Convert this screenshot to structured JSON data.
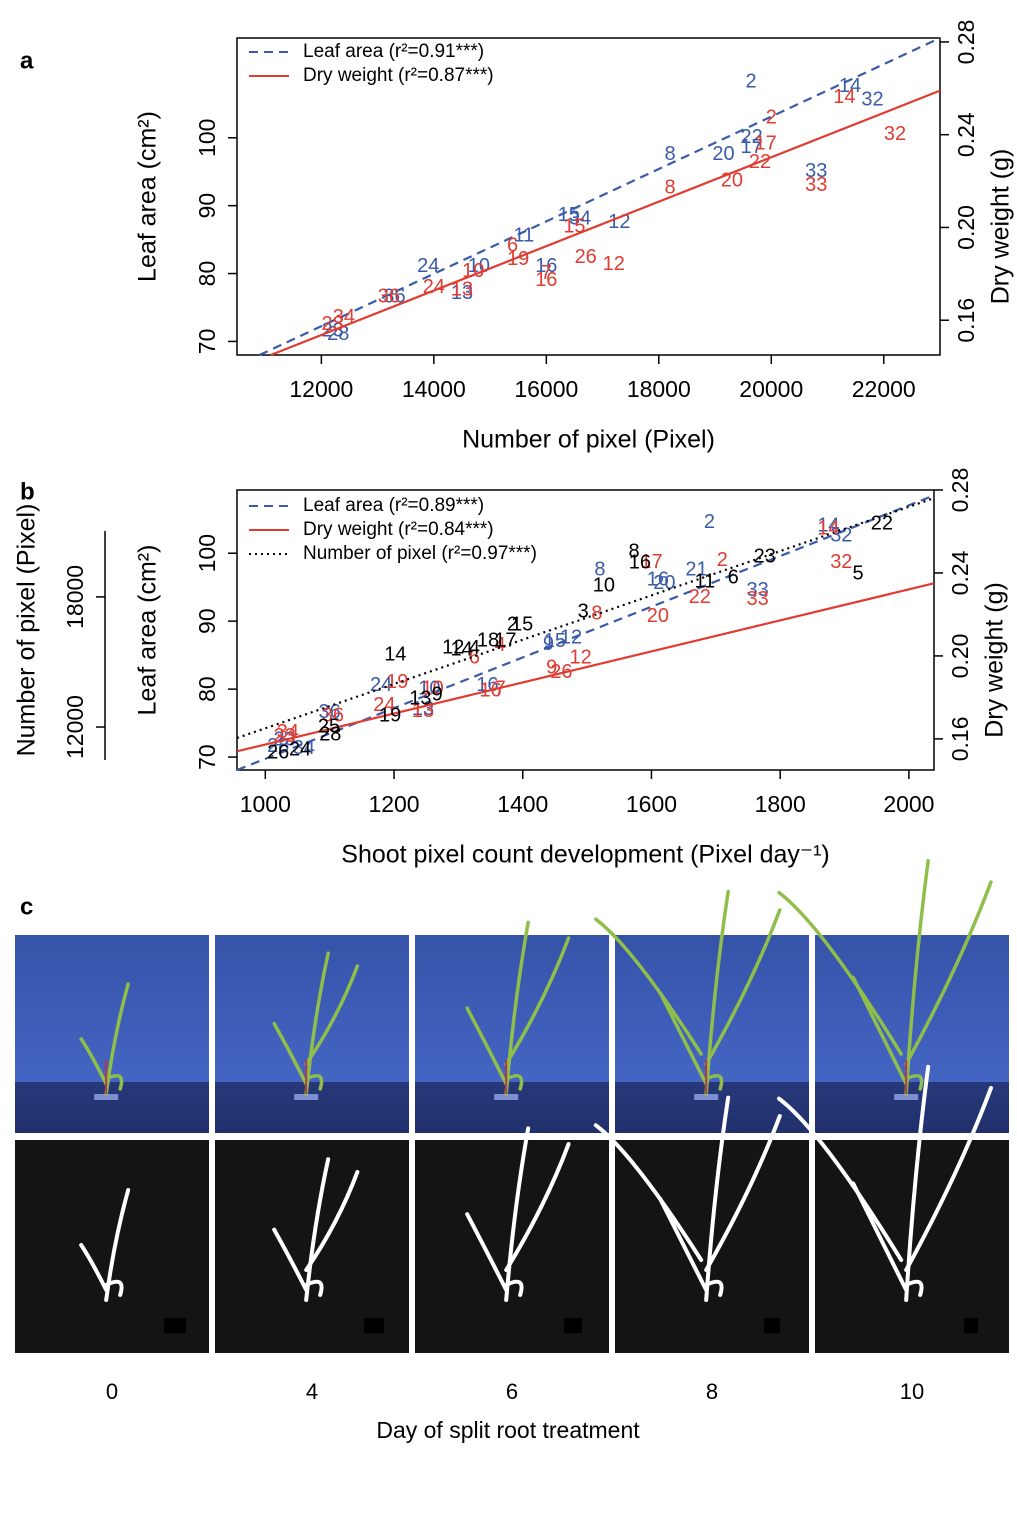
{
  "chart_data": [
    {
      "type": "scatter",
      "panel": "a",
      "xlabel": "Number of pixel (Pixel)",
      "ylabel": "Leaf area (cm²)",
      "y2label": "Dry weight (g)",
      "xlim": [
        10500,
        23000
      ],
      "xticks": [
        12000,
        14000,
        16000,
        18000,
        20000,
        22000
      ],
      "ylim": [
        68,
        114.7
      ],
      "yticks": [
        70,
        80,
        90,
        100
      ],
      "y2lim": [
        0.145,
        0.2817
      ],
      "y2ticks": [
        0.16,
        {
          "value": 0.2,
          "label": "0.20"
        },
        0.24,
        0.28
      ],
      "legend": "upper left",
      "series": [
        {
          "name": "Leaf area (r²=0.91***)",
          "color": "#3a5ba9",
          "linestyle": "dashed",
          "axis": "y",
          "labels": [
            "2",
            "14",
            "32",
            "22",
            "17",
            "20",
            "8",
            "33",
            "15",
            "34",
            "12",
            "11",
            "16",
            "10",
            "24",
            "13",
            "36",
            "28",
            "23"
          ],
          "x": [
            19640,
            21400,
            21800,
            19650,
            19650,
            19150,
            18200,
            20800,
            16400,
            16600,
            17300,
            15600,
            16000,
            14800,
            13900,
            14500,
            13300,
            12300,
            12200
          ],
          "y": [
            108.2,
            107.5,
            105.5,
            100,
            98.5,
            97.5,
            97.5,
            95,
            88.5,
            88,
            87.5,
            85.5,
            81,
            81,
            81,
            77,
            76.5,
            71,
            71.5
          ],
          "fit": {
            "x": [
              10900,
              23000
            ],
            "y": [
              68,
              114.7
            ]
          }
        },
        {
          "name": "Dry weight (r²=0.87***)",
          "color": "#e03c31",
          "linestyle": "solid",
          "axis": "y2",
          "labels": [
            "2",
            "14",
            "32",
            "17",
            "22",
            "20",
            "8",
            "33",
            "15",
            "24",
            "12",
            "16",
            "7",
            "10",
            "19",
            "6",
            "26",
            "13",
            "36",
            "34",
            "23"
          ],
          "x": [
            20000,
            21300,
            22200,
            19900,
            19800,
            19300,
            18200,
            20800,
            16500,
            14000,
            17200,
            16000,
            16000,
            14700,
            15500,
            15400,
            16700,
            14500,
            13200,
            12400,
            12200
          ],
          "y": [
            0.247,
            0.256,
            0.24,
            0.236,
            0.228,
            0.22,
            0.217,
            0.218,
            0.2,
            0.174,
            0.184,
            0.177,
            0.18,
            0.181,
            0.186,
            0.192,
            0.187,
            0.173,
            0.17,
            0.161,
            0.158
          ],
          "fit": {
            "x": [
              11100,
              23000
            ],
            "y": [
              0.145,
              0.259
            ]
          }
        }
      ]
    },
    {
      "type": "scatter",
      "panel": "b",
      "xlabel": "Shoot pixel count development (Pixel day⁻¹)",
      "ylabel": "Leaf area (cm²)",
      "y2label": "Dry weight (g)",
      "y3label": "Number of pixel (Pixel)",
      "xlim": [
        956,
        2039
      ],
      "xticks": [
        1000,
        1200,
        1400,
        1600,
        1800,
        2000
      ],
      "ylim": [
        68.1,
        109.3
      ],
      "yticks": [
        70,
        80,
        90,
        100
      ],
      "y2lim": [
        0.145,
        0.28
      ],
      "y2ticks": [
        0.16,
        {
          "value": 0.2,
          "label": "0.20"
        },
        0.24,
        0.28
      ],
      "y3lim": [
        10018,
        22930
      ],
      "y3ticks": [
        12000,
        18000
      ],
      "legend": "upper left",
      "series": [
        {
          "name": "Leaf area (r²=0.89***)",
          "color": "#3a5ba9",
          "linestyle": "dashed",
          "axis": "y",
          "labels": [
            "2",
            "14",
            "32",
            "33",
            "8",
            "21",
            "16",
            "20",
            "12",
            "15",
            "9",
            "16",
            "10",
            "13",
            "24",
            "36",
            "28",
            "34",
            "23"
          ],
          "x": [
            1690,
            1875,
            1895,
            1765,
            1520,
            1670,
            1610,
            1620,
            1475,
            1450,
            1440,
            1345,
            1255,
            1245,
            1180,
            1100,
            1020,
            1060,
            1030
          ],
          "y": [
            104.5,
            104,
            102.5,
            94.5,
            97.5,
            97.5,
            96,
            95.5,
            87.5,
            87,
            86.5,
            80.5,
            80,
            77,
            80.5,
            76.5,
            71.5,
            71.2,
            72.5
          ],
          "fit": {
            "x": [
              956,
              2039
            ],
            "y": [
              68.1,
              108.5
            ]
          }
        },
        {
          "name": "Dry weight (r²=0.84***)",
          "color": "#e03c31",
          "linestyle": "solid",
          "axis": "y2",
          "labels": [
            "2",
            "14",
            "32",
            "22",
            "20",
            "33",
            "17",
            "8",
            "12",
            "26",
            "9",
            "4",
            "6",
            "7",
            "16",
            "10",
            "19",
            "24",
            "13",
            "36",
            "23",
            "34"
          ],
          "x": [
            1710,
            1875,
            1895,
            1675,
            1610,
            1765,
            1600,
            1515,
            1490,
            1460,
            1445,
            1365,
            1325,
            1365,
            1350,
            1260,
            1205,
            1185,
            1245,
            1105,
            1030,
            1035
          ],
          "y": [
            0.246,
            0.261,
            0.245,
            0.228,
            0.219,
            0.227,
            0.245,
            0.22,
            0.199,
            0.192,
            0.194,
            0.205,
            0.199,
            0.184,
            0.183,
            0.184,
            0.187,
            0.176,
            0.173,
            0.171,
            0.161,
            0.163
          ],
          "fit": {
            "x": [
              956,
              2039
            ],
            "y": [
              0.154,
              0.235
            ]
          }
        },
        {
          "name": "Number of pixel (r²=0.97***)",
          "color": "#000000",
          "linestyle": "dotted",
          "axis": "y3",
          "labels": [
            "22",
            "5",
            "23",
            "6",
            "11",
            "16",
            "8",
            "10",
            "3",
            "2",
            "15",
            "18",
            "17",
            "12",
            "14",
            "4",
            "14",
            "13",
            "9",
            "19",
            "25",
            "28",
            "26",
            "24"
          ],
          "x": [
            1958,
            1921,
            1776,
            1727,
            1683,
            1582,
            1573,
            1526,
            1494,
            1384,
            1399,
            1346,
            1373,
            1292,
            1305,
            1325,
            1202,
            1241,
            1267,
            1194,
            1099,
            1101,
            1020,
            1054
          ],
          "y": [
            21355,
            19051,
            19834,
            18866,
            18682,
            19558,
            20065,
            18498,
            17300,
            16700,
            16700,
            15963,
            15963,
            15641,
            15550,
            15600,
            15318,
            13290,
            13475,
            12507,
            12000,
            11631,
            10802,
            10940
          ],
          "fit": {
            "x": [
              956,
              2039
            ],
            "y": [
              11493,
              22553
            ]
          }
        }
      ]
    }
  ],
  "panel_c": {
    "label": "c",
    "days": [
      "0",
      "4",
      "6",
      "8",
      "10"
    ],
    "xlabel": "Day of split root treatment"
  }
}
